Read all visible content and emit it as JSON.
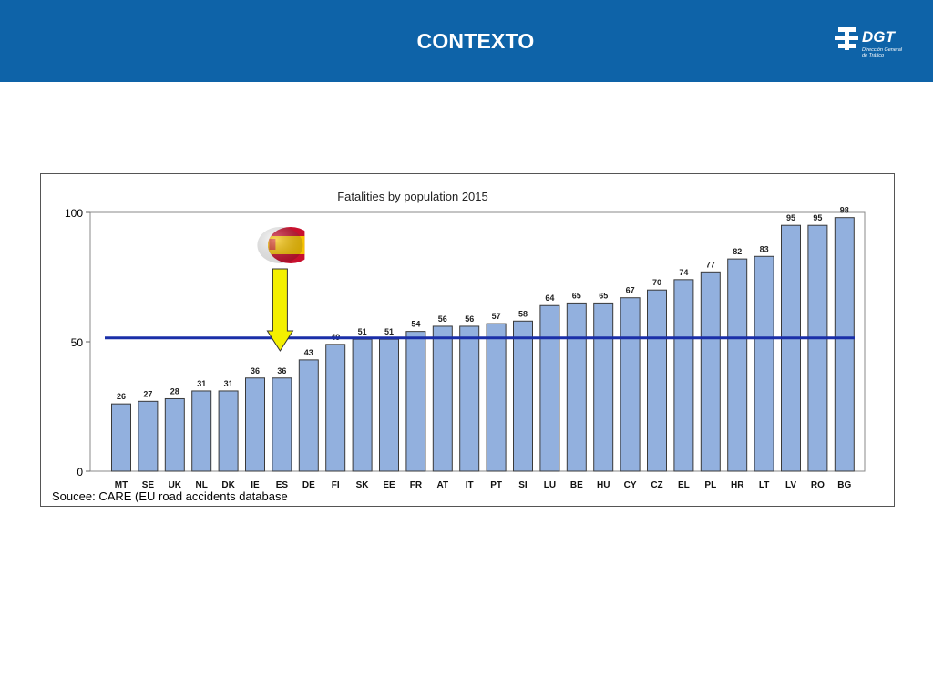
{
  "header": {
    "title": "CONTEXTO",
    "logo_text": "DGT",
    "logo_sub_1": "Dirección General",
    "logo_sub_2": "de Tráfico"
  },
  "colors": {
    "header_bg": "#0e63a8",
    "bar_fill": "#92b0de",
    "bar_stroke": "#3a3a3a",
    "average_line": "#1a2fa8",
    "arrow_fill": "#f4f000"
  },
  "chart_data": {
    "type": "bar",
    "title": "Fatalities by population 2015",
    "source": "Soucee: CARE (EU road accidents database",
    "categories": [
      "MT",
      "SE",
      "UK",
      "NL",
      "DK",
      "IE",
      "ES",
      "DE",
      "FI",
      "SK",
      "EE",
      "FR",
      "AT",
      "IT",
      "PT",
      "SI",
      "LU",
      "BE",
      "HU",
      "CY",
      "CZ",
      "EL",
      "PL",
      "HR",
      "LT",
      "LV",
      "RO",
      "BG"
    ],
    "values": [
      26,
      27,
      28,
      31,
      31,
      36,
      36,
      43,
      49,
      51,
      51,
      54,
      56,
      56,
      57,
      58,
      64,
      65,
      65,
      67,
      70,
      74,
      77,
      82,
      83,
      95,
      95,
      98
    ],
    "yticks": [
      0,
      50,
      100
    ],
    "ylim": [
      0,
      100
    ],
    "grid": false,
    "average_line_value": 51.5,
    "highlighted_category": "ES",
    "highlight_icon": "spain-flag-icon",
    "highlight_pointer": "arrow-down-icon"
  }
}
